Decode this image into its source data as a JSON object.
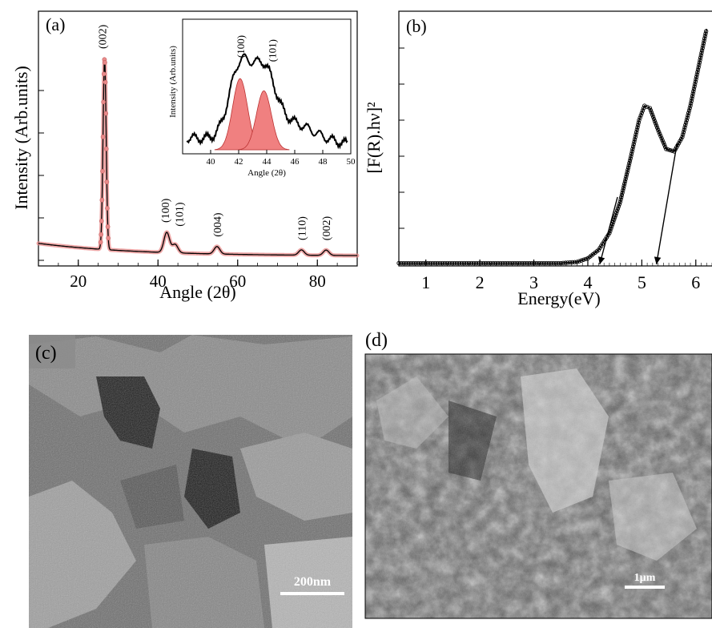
{
  "chart_data": [
    {
      "panel": "(a)",
      "type": "line",
      "xlabel": "Angle (2θ)",
      "ylabel": "Intensity (Arb.units)",
      "xlim": [
        10,
        90
      ],
      "x_ticks": [
        20,
        40,
        60,
        80
      ],
      "ylim": [
        0,
        100
      ],
      "series_color": "#e88a8a",
      "fit_color": "#000000",
      "peaks": [
        {
          "label": "(002)",
          "x": 26.6,
          "height": 90
        },
        {
          "label": "(100)",
          "x": 42.2,
          "height": 9.5
        },
        {
          "label": "(101)",
          "x": 44.3,
          "height": 4
        },
        {
          "label": "(004)",
          "x": 54.8,
          "height": 3.5
        },
        {
          "label": "(110)",
          "x": 76.0,
          "height": 2.5
        },
        {
          "label": "(002)",
          "x": 82.2,
          "height": 2.5
        }
      ],
      "inset": {
        "type": "area",
        "xlabel": "Angle (2θ)",
        "ylabel": "Intensity (Arb.units)",
        "xlim": [
          38,
          50
        ],
        "x_ticks": [
          40,
          42,
          44,
          46,
          48,
          50
        ],
        "ylim": [
          0,
          100
        ],
        "fill_color": "#f08080",
        "peaks": [
          {
            "label": "(100)",
            "x": 42.1,
            "height": 70
          },
          {
            "label": "(101)",
            "x": 43.8,
            "height": 58
          }
        ]
      }
    },
    {
      "panel": "(b)",
      "type": "line",
      "xlabel": "Energy(eV)",
      "ylabel": "[F(R).hν]²",
      "xlim": [
        0.5,
        6.3
      ],
      "x_ticks": [
        1,
        2,
        3,
        4,
        5,
        6
      ],
      "ylim": [
        0,
        100
      ],
      "points": [
        [
          0.5,
          0.5
        ],
        [
          3.5,
          0.5
        ],
        [
          3.8,
          1
        ],
        [
          4.0,
          2.5
        ],
        [
          4.2,
          6
        ],
        [
          4.4,
          13
        ],
        [
          4.6,
          26
        ],
        [
          4.8,
          45
        ],
        [
          4.95,
          60
        ],
        [
          5.05,
          66
        ],
        [
          5.15,
          65
        ],
        [
          5.3,
          56
        ],
        [
          5.45,
          48
        ],
        [
          5.6,
          47
        ],
        [
          5.75,
          53
        ],
        [
          5.9,
          66
        ],
        [
          6.05,
          82
        ],
        [
          6.2,
          98
        ]
      ],
      "tangents": [
        {
          "from": [
            4.55,
            28
          ],
          "to": [
            4.22,
            0
          ]
        },
        {
          "from": [
            5.65,
            50
          ],
          "to": [
            5.27,
            0
          ]
        }
      ]
    }
  ],
  "panels": {
    "c": {
      "label": "(c)",
      "scale_bar": "200nm"
    },
    "d": {
      "label": "(d)",
      "scale_bar": "1µm"
    }
  }
}
